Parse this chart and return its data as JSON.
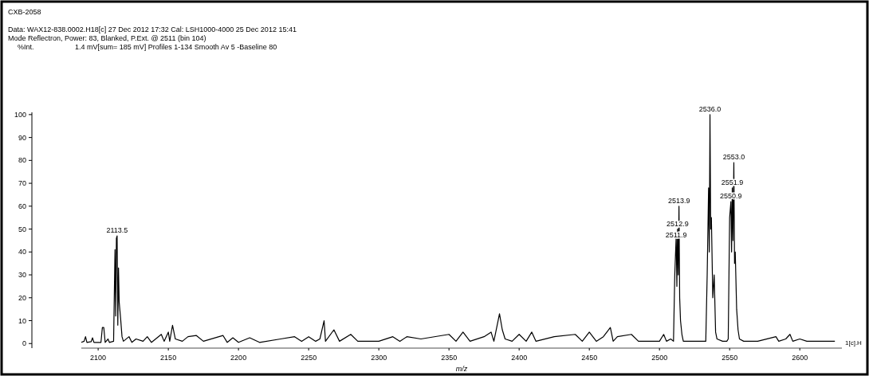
{
  "chart_data": {
    "type": "line",
    "title": "CXB-2058",
    "subtitle": "Data: WAX12-838.0002.H18[c] 27 Dec 2012 17:32 Cal: LSH1000-4000 25 Dec 2012 15:41",
    "xlabel": "m/z",
    "annotations": [
      "Mode Reflectron, Power: 83, Blanked, P.Ext. @ 2511 (bin 104)",
      "%Int.",
      "1.4 mV[sum= 185 mV]  Profiles 1-134 Smooth Av 5 -Baseline 80",
      "1[c].H",
      {
        "text": "2113.5",
        "x": 2113.5,
        "y": 47
      },
      {
        "text": "2511.9",
        "x": 2511.9,
        "y": 47
      },
      {
        "text": "2512.9",
        "x": 2512.9,
        "y": 50
      },
      {
        "text": "2513.9",
        "x": 2513.9,
        "y": 60
      },
      {
        "text": "2536.0",
        "x": 2536,
        "y": 100
      },
      {
        "text": "2550.9",
        "x": 2550.9,
        "y": 62
      },
      {
        "text": "2551.9",
        "x": 2551.9,
        "y": 68
      },
      {
        "text": "2553.0",
        "x": 2553,
        "y": 79
      }
    ],
    "xlim": [
      2088,
      2630
    ],
    "ylim": [
      -2,
      101
    ],
    "xticks": [
      2100,
      2150,
      2200,
      2250,
      2300,
      2350,
      2400,
      2450,
      2500,
      2550,
      2600
    ],
    "yticks": [
      0,
      10,
      20,
      30,
      40,
      50,
      60,
      70,
      80,
      90,
      100
    ],
    "grid": false,
    "series": [
      {
        "color": "#000000",
        "x": [
          2088,
          2090,
          2091,
          2092,
          2095,
          2096,
          2097,
          2102,
          2103,
          2104,
          2105,
          2107,
          2108,
          2111,
          2112,
          2112.5,
          2113,
          2113.5,
          2114,
          2114.5,
          2115,
          2116,
          2117,
          2118,
          2122,
          2124,
          2127,
          2132,
          2135,
          2138,
          2145,
          2147,
          2150,
          2151,
          2153,
          2155,
          2160,
          2164,
          2170,
          2175,
          2189,
          2192,
          2196,
          2200,
          2208,
          2215,
          2230,
          2240,
          2245,
          2250,
          2255,
          2258,
          2261,
          2262,
          2268,
          2272,
          2280,
          2285,
          2300,
          2310,
          2315,
          2320,
          2330,
          2350,
          2355,
          2360,
          2365,
          2375,
          2380,
          2382,
          2385,
          2386,
          2388,
          2390,
          2395,
          2400,
          2405,
          2409,
          2412,
          2425,
          2440,
          2445,
          2450,
          2455,
          2460,
          2465,
          2467,
          2470,
          2480,
          2485,
          2500,
          2503,
          2505,
          2508,
          2510,
          2510.9,
          2511.9,
          2512.4,
          2512.9,
          2513.4,
          2513.9,
          2514.4,
          2515,
          2516,
          2517,
          2525,
          2530,
          2533,
          2534,
          2535,
          2535.5,
          2536,
          2536.5,
          2537,
          2538,
          2539,
          2540,
          2541,
          2545,
          2548,
          2549,
          2550,
          2550.9,
          2551.4,
          2551.9,
          2552.4,
          2553,
          2553.5,
          2554,
          2555,
          2556,
          2557,
          2560,
          2570,
          2583,
          2585,
          2590,
          2593,
          2595,
          2600,
          2605,
          2620,
          2625
        ],
        "values": [
          0.5,
          1,
          3,
          0.5,
          0.8,
          2.5,
          0.5,
          0.5,
          7,
          7,
          0.5,
          2,
          0.5,
          1,
          41,
          12,
          46,
          47,
          8,
          33,
          18,
          11,
          3,
          1,
          3,
          0.5,
          2,
          1,
          3,
          0.5,
          4,
          1,
          5,
          1,
          8,
          2,
          1,
          3,
          3.5,
          1,
          3.5,
          0.5,
          2.5,
          0.5,
          2.5,
          0.5,
          2,
          3,
          1,
          3,
          1,
          2,
          10,
          1,
          6,
          1,
          4,
          1,
          1,
          3,
          1,
          3,
          2,
          4,
          1,
          5,
          1,
          3,
          5,
          1,
          10,
          13,
          6,
          2,
          1,
          4,
          1,
          5,
          1,
          3,
          4,
          1,
          5,
          1,
          3,
          7,
          1,
          3,
          4,
          1,
          1,
          4,
          1,
          2,
          1,
          30,
          47,
          25,
          50,
          30,
          60,
          20,
          10,
          4,
          1,
          1,
          1,
          1,
          30,
          68,
          40,
          100,
          50,
          55,
          20,
          30,
          5,
          2,
          1,
          1,
          2,
          55,
          62,
          40,
          68,
          45,
          79,
          35,
          40,
          15,
          6,
          2,
          1,
          1,
          3,
          1,
          2,
          4,
          1,
          2,
          1,
          1,
          1
        ]
      }
    ]
  }
}
